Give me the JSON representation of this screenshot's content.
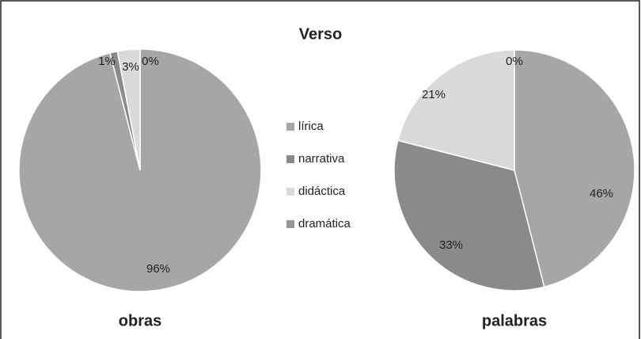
{
  "chart_data": {
    "type": "pie",
    "title": "Verso",
    "categories": [
      "lírica",
      "narrativa",
      "didáctica",
      "dramática"
    ],
    "colors": [
      "#a6a6a6",
      "#8a8a8a",
      "#dadada",
      "#979797"
    ],
    "series": [
      {
        "name": "obras",
        "values": [
          96,
          1,
          3,
          0
        ],
        "value_labels": [
          "96%",
          "1%",
          "3%",
          "0%"
        ]
      },
      {
        "name": "palabras",
        "values": [
          46,
          33,
          21,
          0
        ],
        "value_labels": [
          "46%",
          "33%",
          "21%",
          "0%"
        ]
      }
    ]
  }
}
